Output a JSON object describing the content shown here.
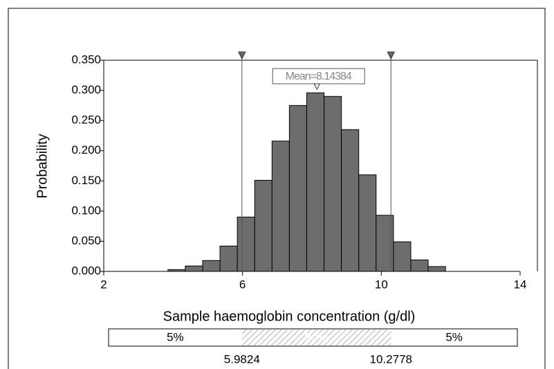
{
  "chart_data": {
    "type": "histogram",
    "x_label": "Sample haemoglobin concentration (g/dl)",
    "y_label": "Probability",
    "bins": [
      3.85,
      4.35,
      4.85,
      5.35,
      5.85,
      6.35,
      6.85,
      7.35,
      7.85,
      8.35,
      8.85,
      9.35,
      9.85,
      10.35,
      10.85,
      11.35,
      11.85
    ],
    "values": [
      0.003,
      0.009,
      0.018,
      0.042,
      0.09,
      0.151,
      0.216,
      0.275,
      0.296,
      0.29,
      0.235,
      0.16,
      0.093,
      0.049,
      0.019,
      0.008
    ],
    "color": "#6d6d6d",
    "xlim": [
      2,
      14
    ],
    "xticks": [
      2,
      6,
      10,
      14
    ],
    "ylim": [
      0,
      0.35
    ],
    "yticks": [
      {
        "value": 0,
        "label": "0.000"
      },
      {
        "value": 0.05,
        "label": "0.050"
      },
      {
        "value": 0.1,
        "label": "0.100"
      },
      {
        "value": 0.15,
        "label": "0.150"
      },
      {
        "value": 0.2,
        "label": "0.200"
      },
      {
        "value": 0.25,
        "label": "0.250"
      },
      {
        "value": 0.3,
        "label": "0.300"
      },
      {
        "value": 0.35,
        "label": "0.350"
      }
    ],
    "markers": [
      5.9824,
      10.2778
    ],
    "mean": {
      "value": 8.14384,
      "label": "Mean=8.14384"
    },
    "band_labels": [
      "5%",
      "90%",
      "5%"
    ]
  }
}
